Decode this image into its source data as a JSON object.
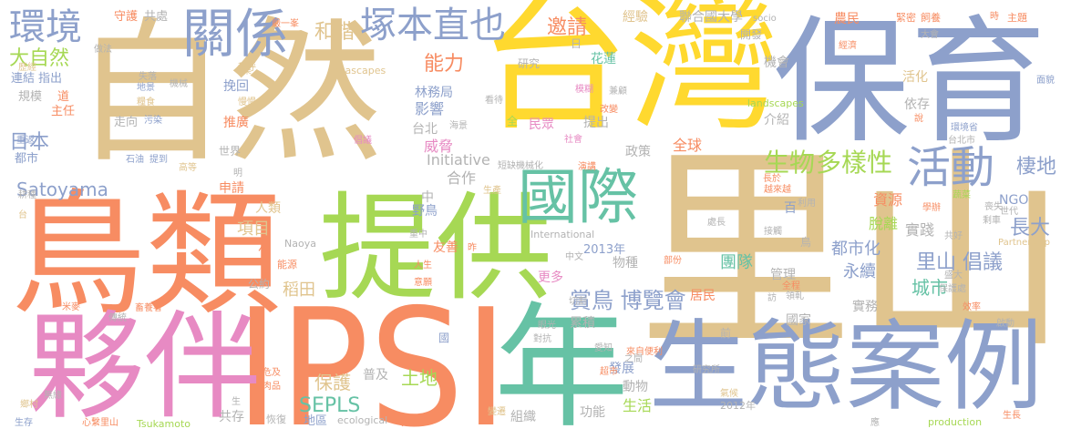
{
  "palette": {
    "tan": "#e0c48e",
    "orange": "#f78c62",
    "green": "#a6d854",
    "blue": "#8da0cb",
    "yellow": "#ffd92f",
    "pink": "#e78ac3",
    "teal": "#66c2a5",
    "grey": "#b3b3b3"
  },
  "words": [
    {
      "text": "里山",
      "color": "#e0c48e"
    },
    {
      "text": "自然",
      "color": "#e0c48e"
    },
    {
      "text": "台灣",
      "color": "#ffd92f"
    },
    {
      "text": "保育",
      "color": "#8da0cb"
    },
    {
      "text": "鳥類",
      "color": "#f78c62"
    },
    {
      "text": "提供",
      "color": "#a6d854"
    },
    {
      "text": "IPSI",
      "color": "#f78c62"
    },
    {
      "text": "夥伴",
      "color": "#e78ac3"
    },
    {
      "text": "年",
      "color": "#66c2a5"
    },
    {
      "text": "生態案例",
      "color": "#8da0cb"
    },
    {
      "text": "國際",
      "color": "#66c2a5"
    },
    {
      "text": "關係",
      "color": "#8da0cb"
    },
    {
      "text": "環境",
      "color": "#8da0cb"
    },
    {
      "text": "塚本直也",
      "color": "#8da0cb"
    },
    {
      "text": "活動",
      "color": "#8da0cb"
    },
    {
      "text": "生物",
      "color": "#a6d854"
    },
    {
      "text": "多樣性",
      "color": "#a6d854"
    },
    {
      "text": "大自然",
      "color": "#a6d854"
    },
    {
      "text": "和諧",
      "color": "#e0c48e"
    },
    {
      "text": "邀請",
      "color": "#f78c62"
    },
    {
      "text": "能力",
      "color": "#f78c62"
    },
    {
      "text": "日本",
      "color": "#8da0cb"
    },
    {
      "text": "里山 倡議",
      "color": "#8da0cb"
    },
    {
      "text": "賞鳥 博覽會",
      "color": "#8da0cb"
    },
    {
      "text": "棲地",
      "color": "#8da0cb"
    },
    {
      "text": "長大",
      "color": "#8da0cb"
    },
    {
      "text": "SEPLS",
      "color": "#66c2a5"
    },
    {
      "text": "保護",
      "color": "#e0c48e"
    },
    {
      "text": "土地",
      "color": "#a6d854"
    },
    {
      "text": "城市",
      "color": "#66c2a5"
    },
    {
      "text": "Satoyama",
      "color": "#8da0cb"
    },
    {
      "text": "項目",
      "color": "#e0c48e"
    },
    {
      "text": "稻田",
      "color": "#e0c48e"
    },
    {
      "text": "都市化",
      "color": "#8da0cb"
    },
    {
      "text": "永續",
      "color": "#8da0cb"
    },
    {
      "text": "團隊",
      "color": "#66c2a5"
    },
    {
      "text": "合作",
      "color": "#b3b3b3"
    },
    {
      "text": "威脅",
      "color": "#e78ac3"
    },
    {
      "text": "影響",
      "color": "#8da0cb"
    },
    {
      "text": "全球",
      "color": "#f78c62"
    },
    {
      "text": "資源",
      "color": "#f78c62"
    },
    {
      "text": "脫離",
      "color": "#a6d854"
    },
    {
      "text": "實踐",
      "color": "#b3b3b3"
    },
    {
      "text": "Initiative",
      "color": "#b3b3b3"
    },
    {
      "text": "2013年",
      "color": "#8da0cb"
    },
    {
      "text": "農民",
      "color": "#f78c62"
    },
    {
      "text": "經驗",
      "color": "#e0c48e"
    },
    {
      "text": "聯合國大學",
      "color": "#b3b3b3"
    },
    {
      "text": "守護",
      "color": "#f78c62"
    },
    {
      "text": "共處",
      "color": "#b3b3b3"
    },
    {
      "text": "NGO",
      "color": "#8da0cb"
    },
    {
      "text": "生活",
      "color": "#a6d854"
    },
    {
      "text": "功能",
      "color": "#b3b3b3"
    },
    {
      "text": "發展",
      "color": "#8da0cb"
    },
    {
      "text": "組織",
      "color": "#b3b3b3"
    },
    {
      "text": "共存",
      "color": "#b3b3b3"
    },
    {
      "text": "普及",
      "color": "#b3b3b3"
    },
    {
      "text": "申請",
      "color": "#f78c62"
    },
    {
      "text": "推廣",
      "color": "#f78c62"
    },
    {
      "text": "挽回",
      "color": "#8da0cb"
    },
    {
      "text": "人類",
      "color": "#e0c48e"
    },
    {
      "text": "友善",
      "color": "#f78c62"
    },
    {
      "text": "更多",
      "color": "#e78ac3"
    },
    {
      "text": "累積",
      "color": "#b3b3b3"
    },
    {
      "text": "動物",
      "color": "#b3b3b3"
    },
    {
      "text": "物種",
      "color": "#b3b3b3"
    },
    {
      "text": "居民",
      "color": "#f78c62"
    },
    {
      "text": "實務",
      "color": "#b3b3b3"
    },
    {
      "text": "國家",
      "color": "#b3b3b3"
    },
    {
      "text": "管理",
      "color": "#b3b3b3"
    },
    {
      "text": "依存",
      "color": "#b3b3b3"
    },
    {
      "text": "介紹",
      "color": "#b3b3b3"
    },
    {
      "text": "提出",
      "color": "#b3b3b3"
    },
    {
      "text": "政策",
      "color": "#b3b3b3"
    },
    {
      "text": "台北",
      "color": "#b3b3b3"
    },
    {
      "text": "林務局",
      "color": "#8da0cb"
    },
    {
      "text": "花蓮",
      "color": "#66c2a5"
    },
    {
      "text": "民眾",
      "color": "#e78ac3"
    },
    {
      "text": "機會",
      "color": "#b3b3b3"
    },
    {
      "text": "活化",
      "color": "#e0c48e"
    },
    {
      "text": "連結",
      "color": "#8da0cb"
    },
    {
      "text": "指出",
      "color": "#8da0cb"
    },
    {
      "text": "規模",
      "color": "#b3b3b3"
    },
    {
      "text": "主任",
      "color": "#f78c62"
    },
    {
      "text": "都市",
      "color": "#8da0cb"
    },
    {
      "text": "研究",
      "color": "#b3b3b3"
    },
    {
      "text": "走向",
      "color": "#b3b3b3"
    },
    {
      "text": "世界",
      "color": "#b3b3b3"
    },
    {
      "text": "Naoya",
      "color": "#b3b3b3"
    },
    {
      "text": "野鳥",
      "color": "#8da0cb"
    },
    {
      "text": "公約",
      "color": "#b3b3b3"
    },
    {
      "text": "能源",
      "color": "#f78c62"
    },
    {
      "text": "International",
      "color": "#b3b3b3"
    },
    {
      "text": "Partnership",
      "color": "#e0c48e"
    },
    {
      "text": "Tsukamoto",
      "color": "#a6d854"
    },
    {
      "text": "ecological",
      "color": "#b3b3b3"
    },
    {
      "text": "production",
      "color": "#a6d854"
    },
    {
      "text": "landscapes",
      "color": "#a6d854"
    },
    {
      "text": "seascapes",
      "color": "#e0c48e"
    },
    {
      "text": "socio",
      "color": "#b3b3b3"
    },
    {
      "text": "2012年",
      "color": "#b3b3b3"
    },
    {
      "text": "研究所",
      "color": "#b3b3b3"
    },
    {
      "text": "地區",
      "color": "#8da0cb"
    },
    {
      "text": "恢復",
      "color": "#b3b3b3"
    },
    {
      "text": "心繫里山",
      "color": "#f78c62"
    },
    {
      "text": "無緣",
      "color": "#b3b3b3"
    },
    {
      "text": "生存",
      "color": "#8da0cb"
    },
    {
      "text": "鄉村",
      "color": "#e0c48e"
    },
    {
      "text": "米麥",
      "color": "#f78c62"
    },
    {
      "text": "傳統",
      "color": "#b3b3b3"
    },
    {
      "text": "畜養者",
      "color": "#f78c62"
    },
    {
      "text": "耕種",
      "color": "#b3b3b3"
    },
    {
      "text": "重返",
      "color": "#8da0cb"
    },
    {
      "text": "石油",
      "color": "#8da0cb"
    },
    {
      "text": "提到",
      "color": "#8da0cb"
    },
    {
      "text": "高等",
      "color": "#e0c48e"
    },
    {
      "text": "倡議",
      "color": "#e78ac3"
    },
    {
      "text": "機械化",
      "color": "#b3b3b3"
    },
    {
      "text": "短缺",
      "color": "#b3b3b3"
    },
    {
      "text": "生產",
      "color": "#e0c48e"
    },
    {
      "text": "地景",
      "color": "#8da0cb"
    },
    {
      "text": "糧食",
      "color": "#e0c48e"
    },
    {
      "text": "污染",
      "color": "#8da0cb"
    },
    {
      "text": "失落",
      "color": "#b3b3b3"
    },
    {
      "text": "機械",
      "color": "#b3b3b3"
    },
    {
      "text": "做法",
      "color": "#b3b3b3"
    },
    {
      "text": "歷經",
      "color": "#e0c48e"
    },
    {
      "text": "嚴一峯",
      "color": "#f78c62"
    },
    {
      "text": "開發",
      "color": "#b3b3b3"
    },
    {
      "text": "緊密",
      "color": "#f78c62"
    },
    {
      "text": "飼養",
      "color": "#f78c62"
    },
    {
      "text": "主題",
      "color": "#f78c62"
    },
    {
      "text": "經濟",
      "color": "#f78c62"
    },
    {
      "text": "大會",
      "color": "#b3b3b3"
    },
    {
      "text": "面貌",
      "color": "#8da0cb"
    },
    {
      "text": "環境省",
      "color": "#8da0cb"
    },
    {
      "text": "台北市",
      "color": "#b3b3b3"
    },
    {
      "text": "蔬菜",
      "color": "#a6d854"
    },
    {
      "text": "喪失",
      "color": "#b3b3b3"
    },
    {
      "text": "剩車",
      "color": "#b3b3b3"
    },
    {
      "text": "世代",
      "color": "#b3b3b3"
    },
    {
      "text": "共好",
      "color": "#b3b3b3"
    },
    {
      "text": "盛大",
      "color": "#b3b3b3"
    },
    {
      "text": "保護處",
      "color": "#b3b3b3"
    },
    {
      "text": "啟動",
      "color": "#b3b3b3"
    },
    {
      "text": "效率",
      "color": "#f78c62"
    },
    {
      "text": "生長",
      "color": "#f78c62"
    },
    {
      "text": "處長",
      "color": "#b3b3b3"
    },
    {
      "text": "接觸",
      "color": "#b3b3b3"
    },
    {
      "text": "部份",
      "color": "#f78c62"
    },
    {
      "text": "全程",
      "color": "#f78c62"
    },
    {
      "text": "領軋",
      "color": "#b3b3b3"
    },
    {
      "text": "氣候",
      "color": "#e0c48e"
    },
    {
      "text": "危及",
      "color": "#f78c62"
    },
    {
      "text": "肉品",
      "color": "#f78c62"
    },
    {
      "text": "來自便利",
      "color": "#f78c62"
    },
    {
      "text": "超市",
      "color": "#f78c62"
    },
    {
      "text": "愛知",
      "color": "#b3b3b3"
    },
    {
      "text": "之間",
      "color": "#b3b3b3"
    },
    {
      "text": "變遷",
      "color": "#e0c48e"
    },
    {
      "text": "眼光",
      "color": "#b3b3b3"
    },
    {
      "text": "對抗",
      "color": "#b3b3b3"
    },
    {
      "text": "切割",
      "color": "#b3b3b3"
    },
    {
      "text": "意願",
      "color": "#f78c62"
    },
    {
      "text": "人生",
      "color": "#f78c62"
    },
    {
      "text": "重中",
      "color": "#b3b3b3"
    },
    {
      "text": "中文",
      "color": "#b3b3b3"
    },
    {
      "text": "全",
      "color": "#a6d854"
    },
    {
      "text": "看待",
      "color": "#b3b3b3"
    },
    {
      "text": "兼顧",
      "color": "#b3b3b3"
    },
    {
      "text": "改變",
      "color": "#f78c62"
    },
    {
      "text": "模糊",
      "color": "#e78ac3"
    },
    {
      "text": "社會",
      "color": "#e78ac3"
    },
    {
      "text": "演講",
      "color": "#f78c62"
    },
    {
      "text": "利用",
      "color": "#b3b3b3"
    },
    {
      "text": "長於",
      "color": "#f78c62"
    },
    {
      "text": "越來越",
      "color": "#f78c62"
    },
    {
      "text": "學辦",
      "color": "#f78c62"
    },
    {
      "text": "稱呼",
      "color": "#e0c48e"
    },
    {
      "text": "慢慢",
      "color": "#e0c48e"
    },
    {
      "text": "海景",
      "color": "#b3b3b3"
    },
    {
      "text": "昨",
      "color": "#f78c62"
    },
    {
      "text": "國",
      "color": "#8da0cb"
    },
    {
      "text": "天",
      "color": "#f78c62"
    },
    {
      "text": "前",
      "color": "#b3b3b3"
    },
    {
      "text": "訪",
      "color": "#b3b3b3"
    },
    {
      "text": "生",
      "color": "#b3b3b3"
    },
    {
      "text": "應",
      "color": "#b3b3b3"
    },
    {
      "text": "鳥",
      "color": "#b3b3b3"
    },
    {
      "text": "次",
      "color": "#f78c62"
    },
    {
      "text": "中",
      "color": "#b3b3b3"
    },
    {
      "text": "百",
      "color": "#8da0cb"
    },
    {
      "text": "日",
      "color": "#b3b3b3"
    },
    {
      "text": "道",
      "color": "#f78c62"
    },
    {
      "text": "時",
      "color": "#f78c62"
    },
    {
      "text": "說",
      "color": "#f78c62"
    },
    {
      "text": "明",
      "color": "#b3b3b3"
    },
    {
      "text": "台",
      "color": "#e0c48e"
    },
    {
      "text": "樂",
      "color": "#e0c48e"
    }
  ]
}
